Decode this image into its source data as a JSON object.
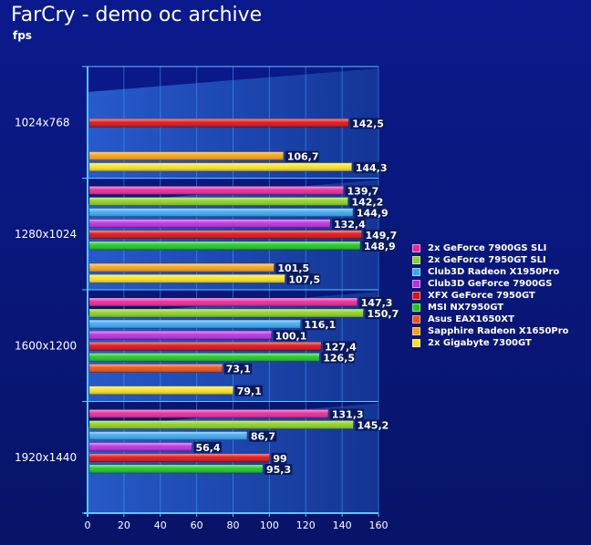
{
  "title": "FarCry - demo oc archive",
  "subtitle": "fps",
  "colors": {
    "background": "#0a1a8c",
    "plot_band_light": "#1f55c8",
    "plot_band_dark": "#17409e",
    "grid": "#3aa0ff",
    "axis": "#5ec4ff",
    "text": "#ffffff"
  },
  "chart_data": {
    "type": "bar",
    "orientation": "horizontal",
    "categories": [
      "1024x768",
      "1280x1024",
      "1600x1200",
      "1920x1440"
    ],
    "xlim": [
      0,
      160
    ],
    "xticks": [
      0,
      20,
      40,
      60,
      80,
      100,
      120,
      140,
      160
    ],
    "series": [
      {
        "name": "2x GeForce 7900GS SLI",
        "color": "#e8289c",
        "values": [
          null,
          139.7,
          147.3,
          131.3
        ],
        "labels": [
          "",
          "139,7",
          "147,3",
          "131,3"
        ]
      },
      {
        "name": "2x GeForce 7950GT SLI",
        "color": "#8cd21c",
        "values": [
          null,
          142.2,
          150.7,
          145.2
        ],
        "labels": [
          "",
          "142,2",
          "150,7",
          "145,2"
        ]
      },
      {
        "name": "Club3D Radeon X1950Pro",
        "color": "#3ca8f0",
        "values": [
          null,
          144.9,
          116.1,
          86.7
        ],
        "labels": [
          "",
          "144,9",
          "116,1",
          "86,7"
        ]
      },
      {
        "name": "Club3D GeForce 7900GS",
        "color": "#c02ce0",
        "values": [
          null,
          132.4,
          100.1,
          56.4
        ],
        "labels": [
          "",
          "132,4",
          "100,1",
          "56,4"
        ]
      },
      {
        "name": "XFX GeForce 7950GT",
        "color": "#e01010",
        "values": [
          142.5,
          149.7,
          127.4,
          99
        ],
        "labels": [
          "142,5",
          "149,7",
          "127,4",
          "99"
        ]
      },
      {
        "name": "MSI NX7950GT",
        "color": "#1cc81c",
        "values": [
          null,
          148.9,
          126.5,
          95.3
        ],
        "labels": [
          "",
          "148,9",
          "126,5",
          "95,3"
        ]
      },
      {
        "name": "Asus EAX1650XT",
        "color": "#f05010",
        "values": [
          null,
          null,
          73.1,
          null
        ],
        "labels": [
          "",
          "",
          "73,1",
          ""
        ]
      },
      {
        "name": "Sapphire Radeon X1650Pro",
        "color": "#f8a010",
        "values": [
          106.7,
          101.5,
          null,
          null
        ],
        "labels": [
          "106,7",
          "101,5",
          "",
          ""
        ]
      },
      {
        "name": "2x Gigabyte 7300GT",
        "color": "#f8e020",
        "values": [
          144.3,
          107.5,
          79.1,
          null
        ],
        "labels": [
          "144,3",
          "107,5",
          "79,1",
          ""
        ]
      }
    ],
    "legend_position": "right",
    "grid": true
  }
}
